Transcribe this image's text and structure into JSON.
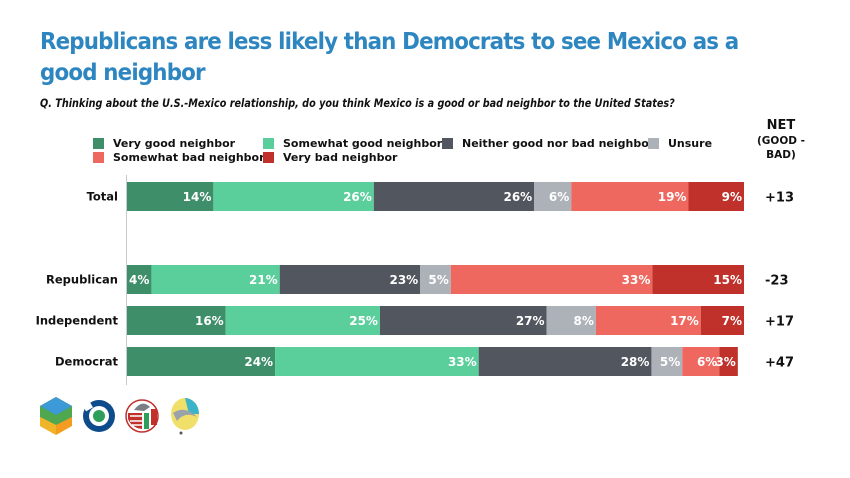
{
  "header": {
    "title": "Republicans are less likely than Democrats to see Mexico as a good neighbor",
    "question": "Q. Thinking about the U.S.-Mexico relationship, do you think Mexico is a good or bad neighbor to the United States?"
  },
  "net_header": {
    "line1": "NET",
    "line2": "(GOOD -",
    "line3": "BAD)"
  },
  "legend": [
    {
      "label": "Very good neighbor",
      "color": "#3E8E6A"
    },
    {
      "label": "Somewhat good neighbor",
      "color": "#5ACF9B"
    },
    {
      "label": "Neither good nor bad neighbor",
      "color": "#52565E"
    },
    {
      "label": "Unsure",
      "color": "#ADB2B8"
    },
    {
      "label": "Somewhat bad neighbor",
      "color": "#EE6860"
    },
    {
      "label": "Very bad neighbor",
      "color": "#C0312B"
    }
  ],
  "logos": [
    {
      "name": "cube-logo-icon"
    },
    {
      "name": "circle-ring-logo-icon"
    },
    {
      "name": "flag-eagle-logo-icon"
    },
    {
      "name": "balloon-logo-icon"
    }
  ],
  "chart_data": {
    "type": "bar",
    "orientation": "horizontal",
    "stacked": true,
    "title": "Republicans are less likely than Democrats to see Mexico as a good neighbor",
    "subtitle": "Q. Thinking about the U.S.-Mexico relationship, do you think Mexico is a good or bad neighbor to the United States?",
    "xlabel": "",
    "ylabel": "",
    "xlim": [
      0,
      100
    ],
    "grid": false,
    "legend_position": "top",
    "categories": [
      "Total",
      "Republican",
      "Independent",
      "Democrat"
    ],
    "series": [
      {
        "name": "Very good neighbor",
        "color": "#3E8E6A",
        "values": [
          14,
          4,
          16,
          24
        ]
      },
      {
        "name": "Somewhat good neighbor",
        "color": "#5ACF9B",
        "values": [
          26,
          21,
          25,
          33
        ]
      },
      {
        "name": "Neither good nor bad neighbor",
        "color": "#52565E",
        "values": [
          26,
          23,
          27,
          28
        ]
      },
      {
        "name": "Unsure",
        "color": "#ADB2B8",
        "values": [
          6,
          5,
          8,
          5
        ]
      },
      {
        "name": "Somewhat bad neighbor",
        "color": "#EE6860",
        "values": [
          19,
          33,
          17,
          6
        ]
      },
      {
        "name": "Very bad neighbor",
        "color": "#C0312B",
        "values": [
          9,
          15,
          7,
          3
        ]
      }
    ],
    "value_suffix": "%",
    "net_label": "NET (GOOD - BAD)",
    "net_values": [
      "+13",
      "-23",
      "+17",
      "+47"
    ]
  }
}
